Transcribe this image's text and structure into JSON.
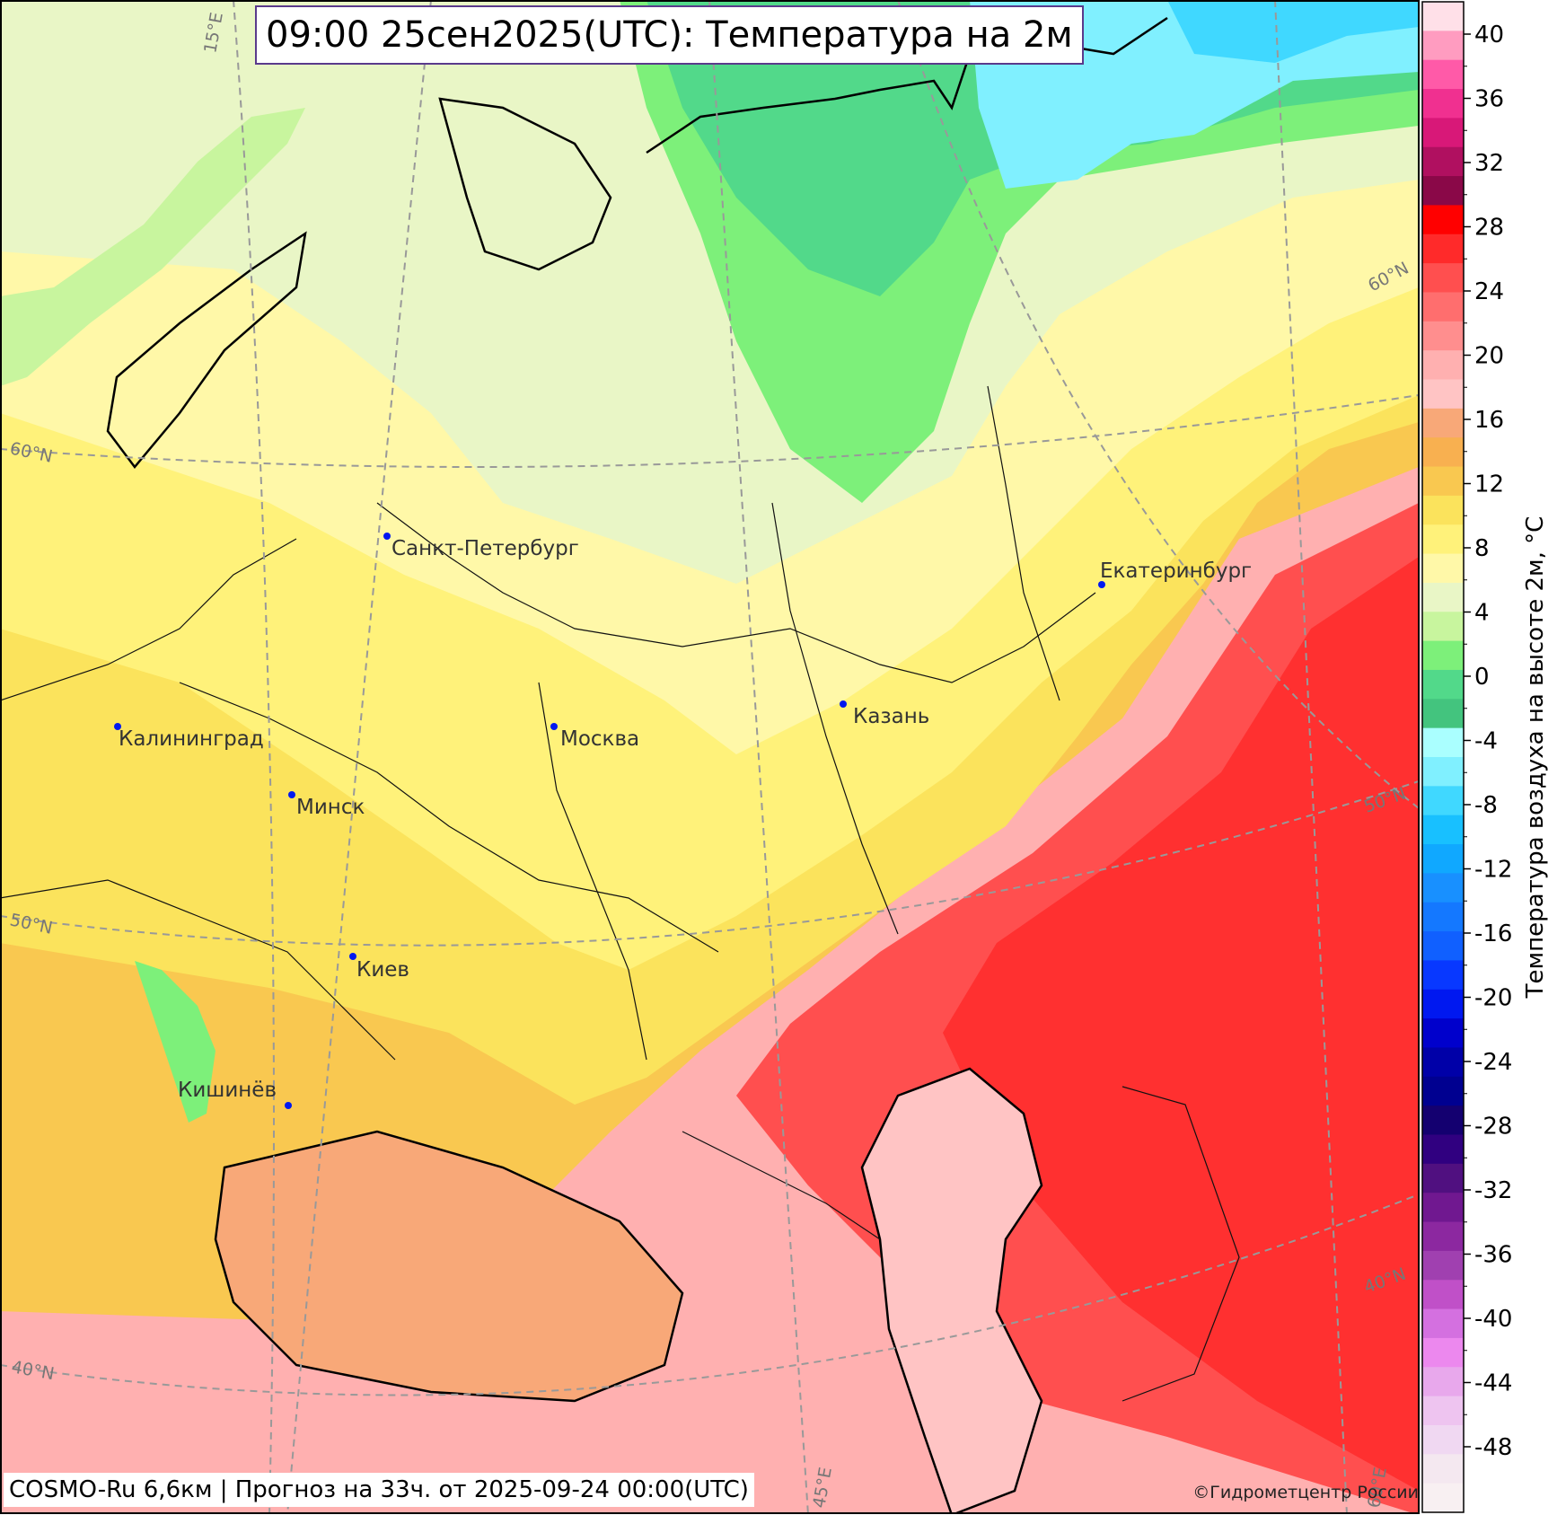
{
  "header": {
    "title": "09:00 25сен2025(UTC): Температура на 2м"
  },
  "footer": {
    "model_info": "COSMO-Ru 6,6км | Прогноз на  33ч. от 2025-09-24 00:00(UTC)",
    "copyright": "©Гидрометцентр России"
  },
  "colorbar": {
    "title": "Температура воздуха на высоте 2м, °C",
    "tick_labels": [
      "40",
      "36",
      "32",
      "28",
      "24",
      "20",
      "16",
      "12",
      "8",
      "4",
      "0",
      "-4",
      "-8",
      "-12",
      "-16",
      "-20",
      "-24",
      "-28",
      "-32",
      "-36",
      "-40",
      "-44",
      "-48"
    ],
    "colors": [
      "#ffe0e8",
      "#ff9cc0",
      "#ff5aa8",
      "#f03090",
      "#d81878",
      "#b01060",
      "#8a0848",
      "#ff0000",
      "#ff2a2a",
      "#ff4f4f",
      "#ff6e6e",
      "#ff8e8e",
      "#ffb0b0",
      "#ffc4c4",
      "#f8a878",
      "#f8b050",
      "#f9c850",
      "#fbe35c",
      "#fff27a",
      "#fff8a8",
      "#e9f6c6",
      "#c8f59e",
      "#7df07a",
      "#52d98a",
      "#43c47e",
      "#aaffff",
      "#80f0ff",
      "#40d8ff",
      "#18c0ff",
      "#10a8ff",
      "#1890ff",
      "#1478ff",
      "#1060ff",
      "#0838ff",
      "#0018f0",
      "#0000cc",
      "#0000a8",
      "#000090",
      "#140070",
      "#300080",
      "#501080",
      "#701890",
      "#8c28a0",
      "#a040b0",
      "#c050c8",
      "#d470e0",
      "#ec88ee",
      "#e8a8ec",
      "#eec4f0",
      "#f0d8f2",
      "#f4e8f0",
      "#f8f0f2"
    ]
  },
  "cities": [
    {
      "name": "Санкт-Петербург"
    },
    {
      "name": "Екатеринбург"
    },
    {
      "name": "Калининград"
    },
    {
      "name": "Москва"
    },
    {
      "name": "Казань"
    },
    {
      "name": "Минск"
    },
    {
      "name": "Киев"
    },
    {
      "name": "Кишинёв"
    }
  ],
  "grid_labels": {
    "lat": [
      "60°N",
      "50°N",
      "40°N",
      "60°N",
      "50°N",
      "40°N"
    ],
    "lon": [
      "15°E",
      "45°E",
      "60°E"
    ]
  }
}
